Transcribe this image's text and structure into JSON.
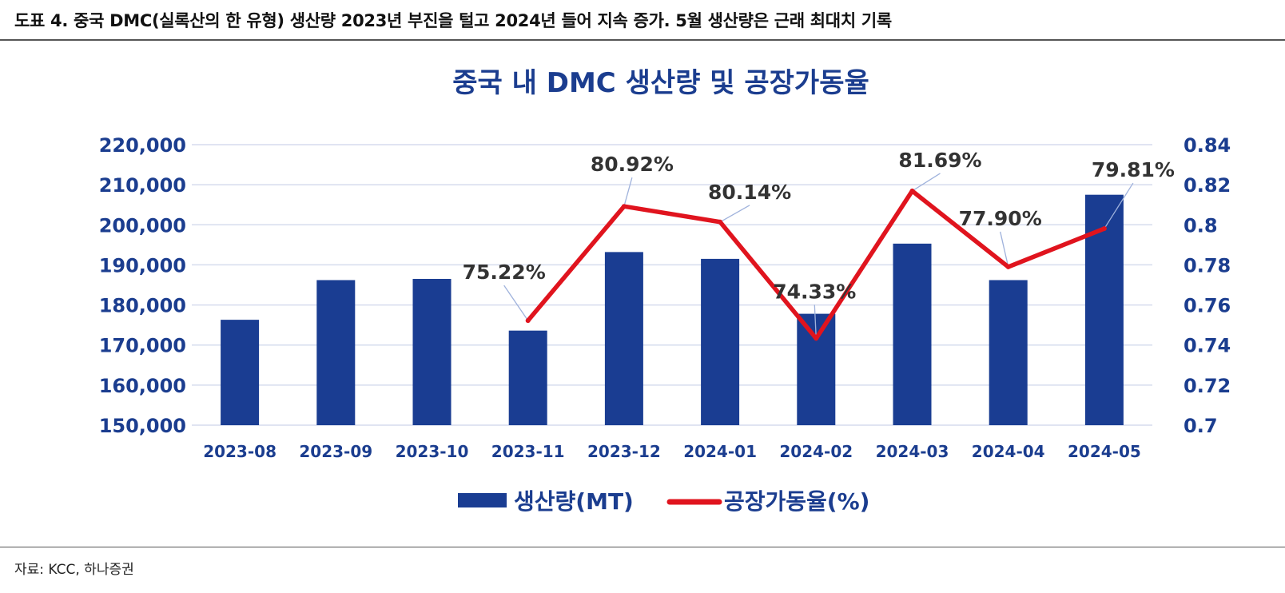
{
  "header": {
    "title": "도표 4. 중국 DMC(실록산의 한 유형) 생산량 2023년 부진을 털고 2024년 들어 지속 증가. 5월 생산량은 근래 최대치 기록"
  },
  "footer": {
    "source": "자료: KCC, 하나증권"
  },
  "colors": {
    "bar": "#1a3d92",
    "line": "#e0141e",
    "axis_text": "#1b3d8f",
    "grid": "#d6dcee"
  },
  "chart_data": {
    "type": "bar",
    "title": "중국 내 DMC 생산량 및 공장가동율",
    "categories": [
      "2023-08",
      "2023-09",
      "2023-10",
      "2023-11",
      "2023-12",
      "2024-01",
      "2024-02",
      "2024-03",
      "2024-04",
      "2024-05"
    ],
    "series": [
      {
        "name": "생산량(MT)",
        "type": "bar",
        "axis": "left",
        "values": [
          176300,
          186200,
          186500,
          173600,
          193200,
          191500,
          177800,
          195300,
          186200,
          207500
        ]
      },
      {
        "name": "공장가동율(%)",
        "type": "line",
        "axis": "right",
        "values": [
          null,
          null,
          null,
          0.7522,
          0.8092,
          0.8014,
          0.7433,
          0.8169,
          0.779,
          0.7981
        ],
        "labels": [
          null,
          null,
          null,
          "75.22%",
          "80.92%",
          "80.14%",
          "74.33%",
          "81.69%",
          "77.90%",
          "79.81%"
        ]
      }
    ],
    "y_left": {
      "ylim": [
        150000,
        220000
      ],
      "ticks": [
        "150,000",
        "160,000",
        "170,000",
        "180,000",
        "190,000",
        "200,000",
        "210,000",
        "220,000"
      ]
    },
    "y_right": {
      "ylim": [
        0.7,
        0.84
      ],
      "ticks": [
        "0.7",
        "0.72",
        "0.74",
        "0.76",
        "0.78",
        "0.8",
        "0.82",
        "0.84"
      ]
    },
    "grid": true,
    "legend": "bottom-center"
  }
}
